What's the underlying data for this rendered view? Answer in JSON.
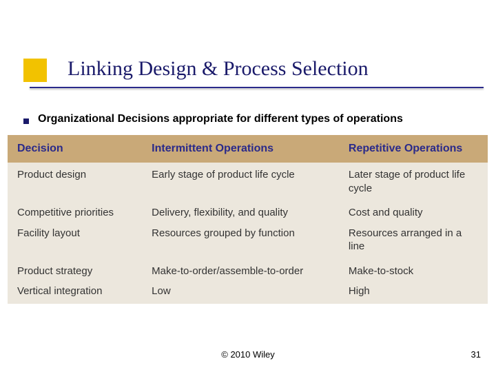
{
  "title": "Linking Design & Process Selection",
  "subtitle": "Organizational Decisions appropriate for different types of operations",
  "footer": {
    "copyright": "© 2010 Wiley",
    "page": "31"
  },
  "colors": {
    "title_color": "#1a1a6a",
    "accent_square": "#f2c200",
    "underline": "#2a2a8a",
    "header_bg": "#c9a978",
    "header_text": "#2a2a8a",
    "body_bg": "#ece7dd",
    "body_text": "#333333"
  },
  "table": {
    "columns": [
      {
        "label": "Decision",
        "width_pct": 28
      },
      {
        "label": "Intermittent Operations",
        "width_pct": 41
      },
      {
        "label": "Repetitive Operations",
        "width_pct": 31
      }
    ],
    "rows": [
      [
        "Product design",
        "Early stage of product life cycle",
        "Later stage of product life cycle"
      ],
      [
        "Competitive priorities",
        "Delivery, flexibility, and quality",
        "Cost and quality"
      ],
      [
        "Facility layout",
        "Resources grouped by function",
        "Resources arranged in a line"
      ],
      [
        "Product strategy",
        "Make-to-order/assemble-to-order",
        "Make-to-stock"
      ],
      [
        "Vertical integration",
        "Low",
        "High"
      ]
    ],
    "tight_row_after": [
      2,
      4
    ]
  }
}
